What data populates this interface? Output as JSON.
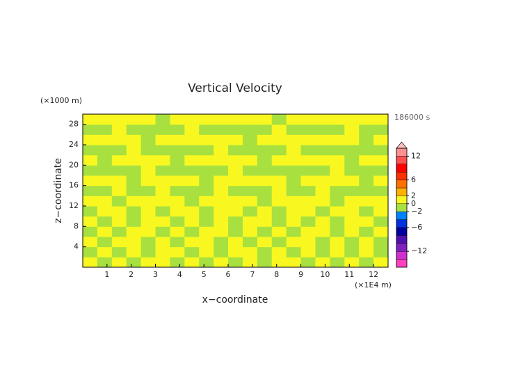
{
  "chart_data": {
    "type": "contour",
    "title": "Vertical Velocity",
    "y_unit": "(×1000 m)",
    "x_unit": "(×1E4 m)",
    "ylabel": "z−coordinate",
    "xlabel": "x−coordinate",
    "time_label": "186000 s",
    "xlim": [
      0,
      12.6
    ],
    "ylim": [
      0,
      30
    ],
    "xticks": [
      1,
      2,
      3,
      4,
      5,
      6,
      7,
      8,
      9,
      10,
      11,
      12
    ],
    "yticks": [
      4,
      8,
      12,
      16,
      20,
      24,
      28
    ],
    "x_edges": [
      0,
      0.6,
      1.2,
      1.8,
      2.4,
      3,
      3.6,
      4.2,
      4.8,
      5.4,
      6,
      6.6,
      7.2,
      7.8,
      8.4,
      9,
      9.6,
      10.2,
      10.8,
      11.4,
      12,
      12.6
    ],
    "z_edges": [
      0,
      2,
      4,
      6,
      8,
      10,
      12,
      14,
      16,
      18,
      20,
      22,
      24,
      26,
      28,
      30
    ],
    "values": [
      [
        1,
        -1,
        1,
        -1,
        1,
        1,
        -1,
        1,
        -1,
        1,
        -1,
        1,
        -1,
        1,
        1,
        -1,
        1,
        -1,
        1,
        -1,
        1
      ],
      [
        -1,
        1,
        -1,
        1,
        -1,
        1,
        1,
        -1,
        1,
        -1,
        1,
        1,
        -1,
        1,
        -1,
        1,
        -1,
        1,
        -1,
        1,
        -1
      ],
      [
        1,
        -1,
        1,
        1,
        -1,
        1,
        -1,
        1,
        1,
        -1,
        1,
        -1,
        1,
        -1,
        1,
        1,
        -1,
        1,
        -1,
        1,
        -1
      ],
      [
        -1,
        1,
        -1,
        1,
        1,
        -1,
        1,
        -1,
        1,
        1,
        -1,
        1,
        -1,
        1,
        -1,
        1,
        1,
        -1,
        1,
        -1,
        1
      ],
      [
        1,
        -1,
        1,
        -1,
        1,
        1,
        -1,
        1,
        -1,
        1,
        -1,
        1,
        1,
        -1,
        1,
        -1,
        1,
        -1,
        1,
        1,
        -1
      ],
      [
        -1,
        1,
        1,
        -1,
        1,
        -1,
        1,
        1,
        -1,
        1,
        1,
        -1,
        1,
        -1,
        1,
        1,
        -1,
        1,
        1,
        -1,
        1
      ],
      [
        1,
        1,
        -1,
        1,
        1,
        1,
        1,
        -1,
        1,
        1,
        1,
        1,
        -1,
        1,
        1,
        1,
        1,
        -1,
        1,
        1,
        1
      ],
      [
        -1,
        -1,
        1,
        -1,
        -1,
        1,
        -1,
        -1,
        -1,
        1,
        -1,
        -1,
        -1,
        1,
        -1,
        -1,
        1,
        -1,
        -1,
        -1,
        -1
      ],
      [
        1,
        1,
        1,
        -1,
        1,
        1,
        1,
        1,
        -1,
        1,
        1,
        1,
        1,
        1,
        -1,
        1,
        1,
        1,
        1,
        -1,
        1
      ],
      [
        -1,
        -1,
        -1,
        -1,
        1,
        -1,
        -1,
        -1,
        -1,
        -1,
        1,
        -1,
        -1,
        -1,
        -1,
        -1,
        -1,
        1,
        -1,
        -1,
        -1
      ],
      [
        1,
        -1,
        1,
        1,
        1,
        1,
        -1,
        1,
        1,
        1,
        1,
        1,
        -1,
        1,
        1,
        1,
        1,
        1,
        -1,
        1,
        1
      ],
      [
        -1,
        -1,
        -1,
        1,
        -1,
        -1,
        -1,
        -1,
        -1,
        1,
        -1,
        -1,
        -1,
        -1,
        1,
        -1,
        -1,
        -1,
        -1,
        -1,
        -1
      ],
      [
        1,
        1,
        1,
        1,
        -1,
        1,
        1,
        1,
        1,
        1,
        1,
        -1,
        1,
        1,
        1,
        1,
        1,
        1,
        1,
        -1,
        1
      ],
      [
        -1,
        -1,
        1,
        -1,
        -1,
        -1,
        -1,
        1,
        -1,
        -1,
        -1,
        -1,
        -1,
        1,
        -1,
        -1,
        -1,
        -1,
        1,
        -1,
        -1
      ],
      [
        1,
        1,
        1,
        1,
        1,
        -1,
        1,
        1,
        1,
        1,
        1,
        1,
        1,
        -1,
        1,
        1,
        1,
        1,
        1,
        1,
        1
      ]
    ],
    "levels": [
      -16,
      -14,
      -12,
      -10,
      -8,
      -6,
      -4,
      -2,
      0,
      2,
      4,
      6,
      8,
      10,
      12,
      14
    ],
    "colors": [
      "#ff40c0",
      "#d030d0",
      "#8020c0",
      "#5010b0",
      "#0000a0",
      "#0030e0",
      "#0080ff",
      "#a8e040",
      "#f8f820",
      "#ffb000",
      "#ff7000",
      "#ff3000",
      "#ff0000",
      "#ff5050",
      "#ff9090"
    ],
    "extend_color": "#ffc0c0",
    "cticks": [
      12,
      6,
      2,
      0,
      {
        "value": -2,
        "label": "−2"
      },
      {
        "value": -6,
        "label": "−6"
      },
      {
        "value": -12,
        "label": "−12"
      }
    ]
  }
}
